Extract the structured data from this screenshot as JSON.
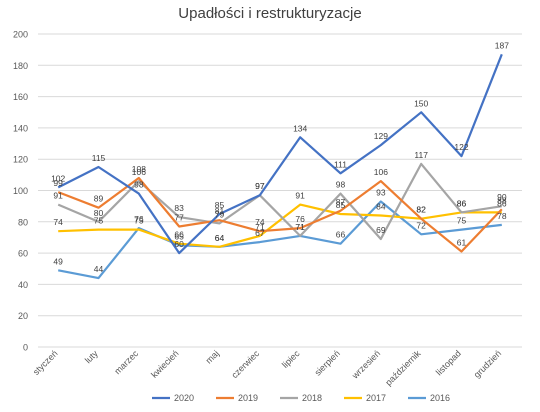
{
  "chart_data": {
    "type": "line",
    "title": "Upadłości i restrukturyzacje",
    "categories": [
      "styczeń",
      "luty",
      "marzec",
      "kwiecień",
      "maj",
      "czerwiec",
      "lipiec",
      "sierpień",
      "wrzesień",
      "październik",
      "listopad",
      "grudzień"
    ],
    "ylim": [
      0,
      200
    ],
    "y_ticks": [
      0,
      20,
      40,
      60,
      80,
      100,
      120,
      140,
      160,
      180,
      200
    ],
    "grid": true,
    "legend_position": "bottom",
    "series": [
      {
        "name": "2016",
        "color": "#5B9BD5",
        "values": [
          49,
          44,
          76,
          65,
          64,
          67,
          71,
          66,
          93,
          72,
          75,
          78
        ]
      },
      {
        "name": "2017",
        "color": "#FFC000",
        "values": [
          74,
          75,
          75,
          66,
          64,
          71,
          91,
          85,
          84,
          82,
          86,
          86
        ]
      },
      {
        "name": "2018",
        "color": "#A5A5A5",
        "values": [
          91,
          80,
          106,
          83,
          79,
          97,
          71,
          98,
          69,
          117,
          86,
          90
        ]
      },
      {
        "name": "2019",
        "color": "#ED7D31",
        "values": [
          99,
          89,
          108,
          77,
          81,
          74,
          76,
          87,
          106,
          82,
          61,
          88
        ]
      },
      {
        "name": "2020",
        "color": "#4472C4",
        "values": [
          102,
          115,
          98,
          60,
          85,
          97,
          134,
          111,
          129,
          150,
          122,
          187
        ]
      }
    ]
  }
}
